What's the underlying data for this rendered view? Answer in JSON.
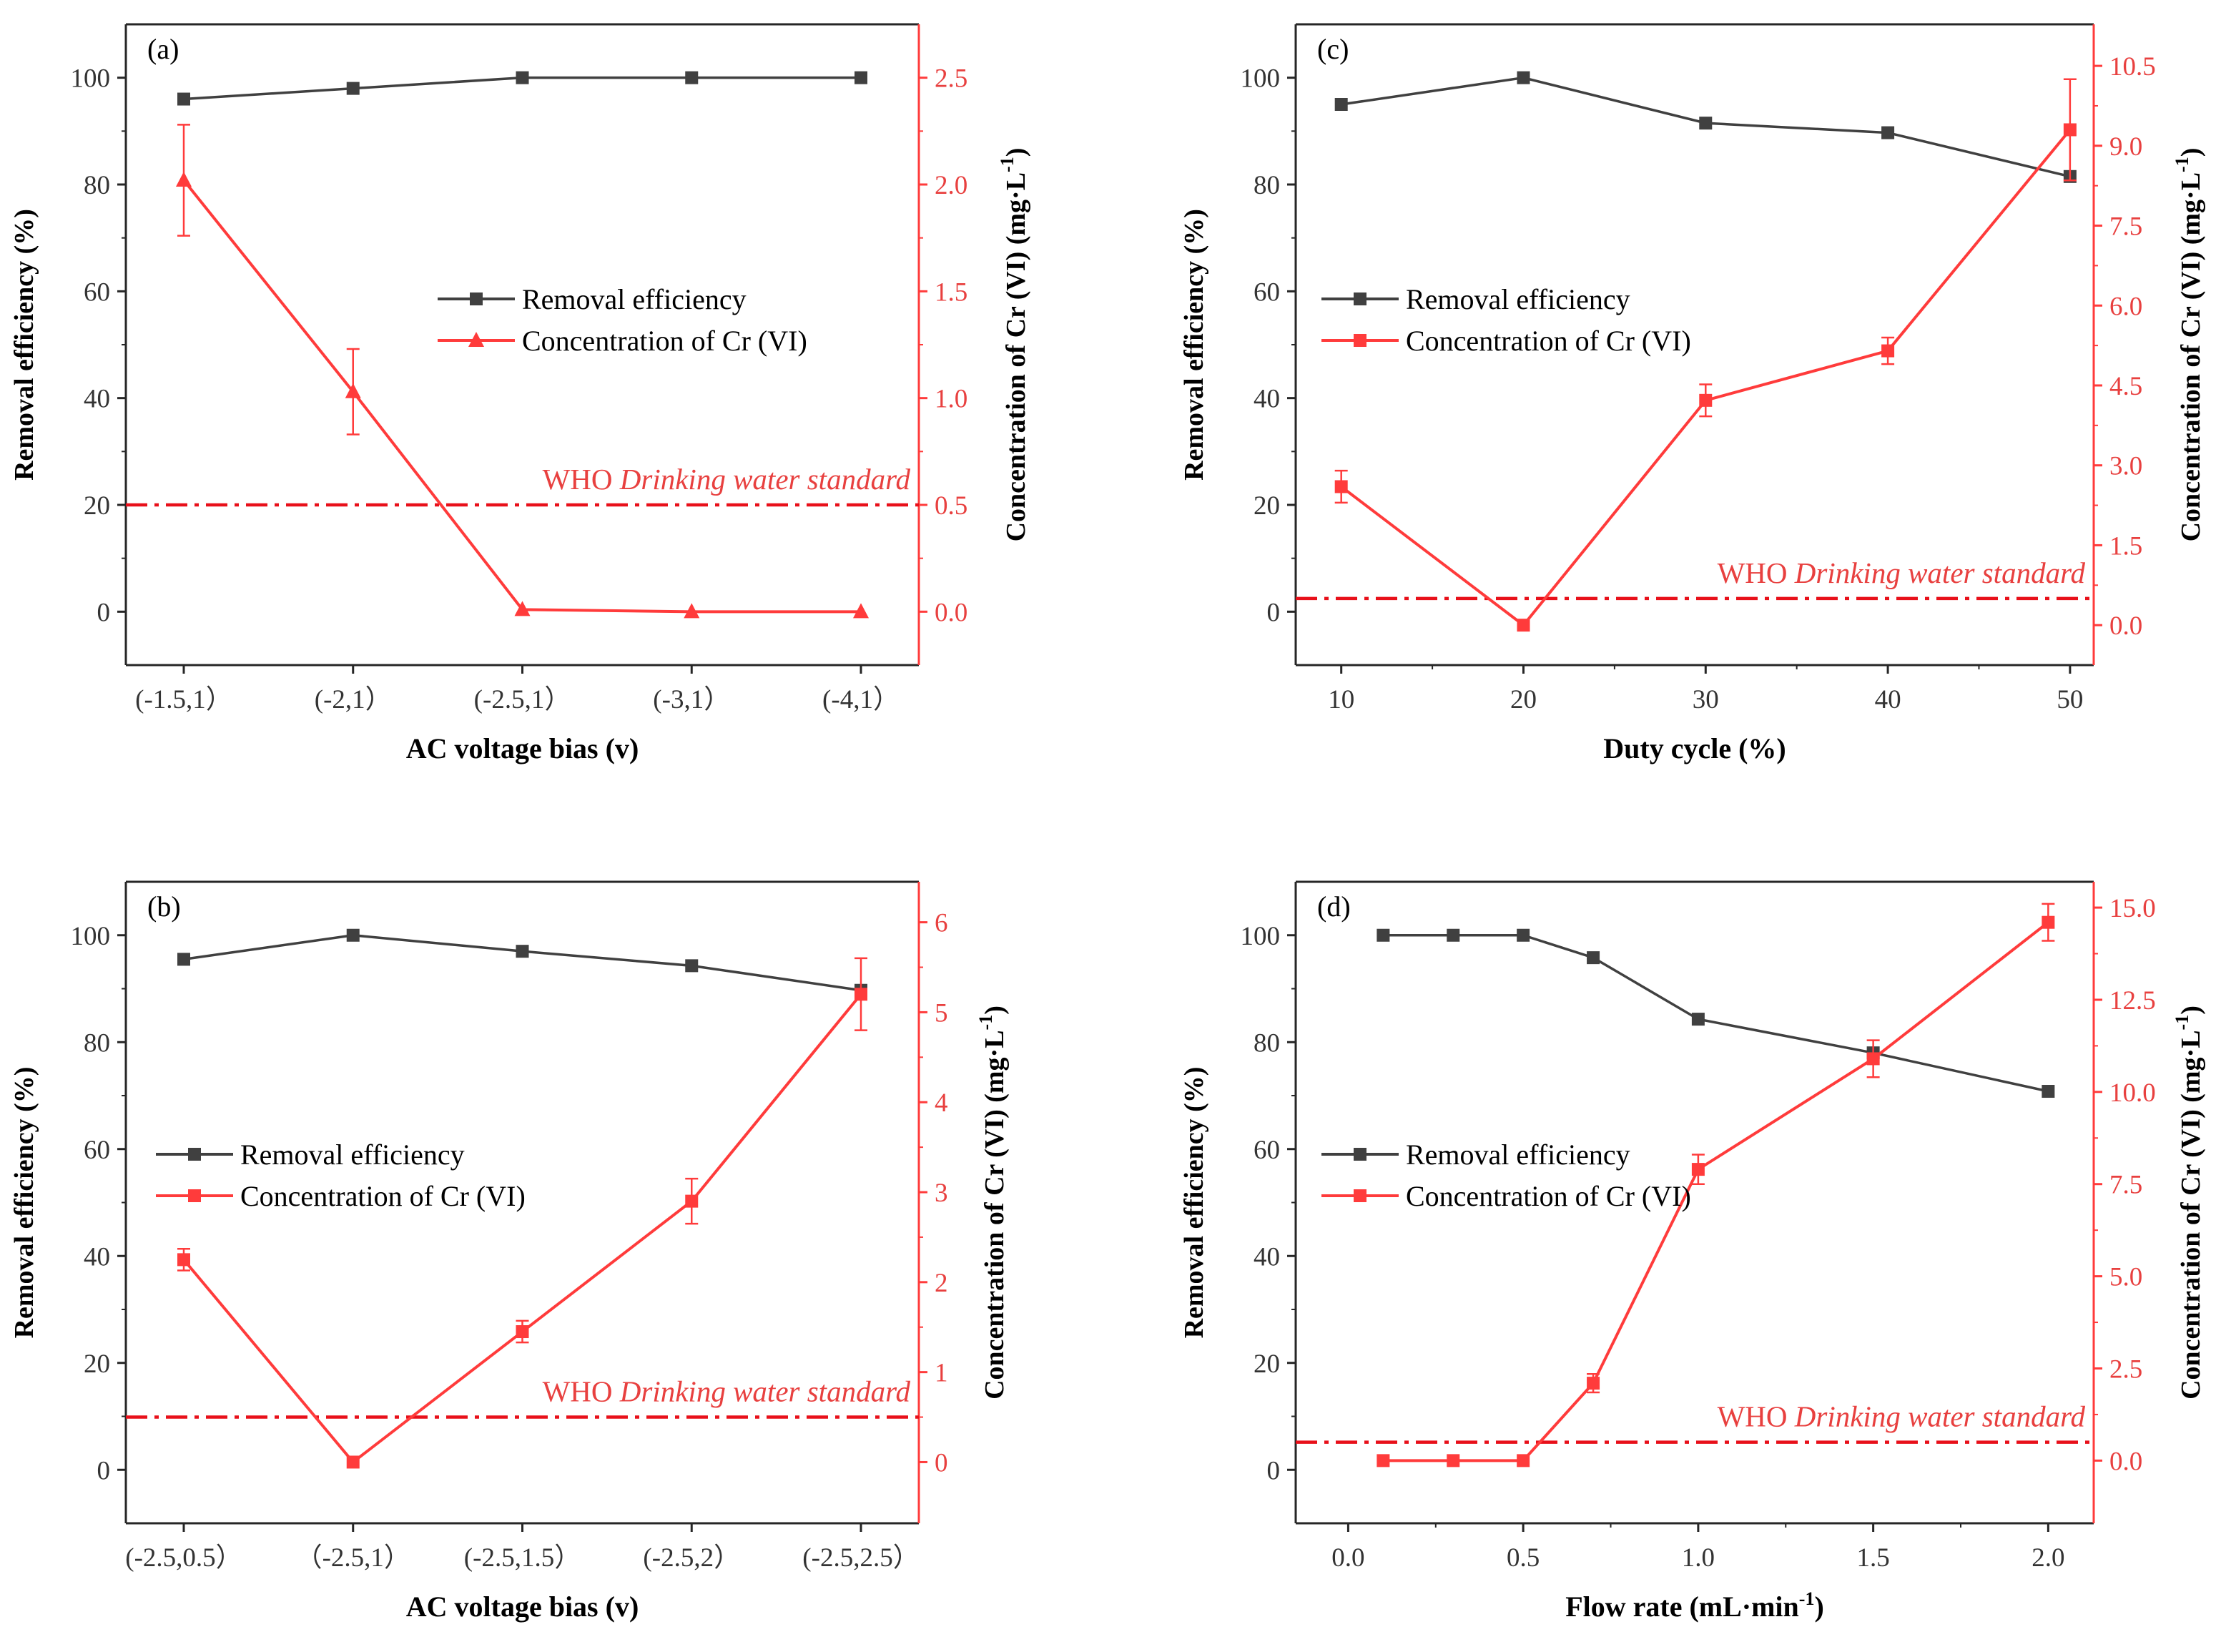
{
  "chart_data": [
    {
      "id": "a",
      "type": "line",
      "panel_label": "(a)",
      "xlabel": "AC voltage bias (v)",
      "ylabel": "Removal efficiency (%)",
      "y2label": "Concentration of Cr (VI) (mg·L",
      "y2label_sup": "-1",
      "y2label_tail": ")",
      "categories": [
        "(-1.5,1）",
        "(-2,1）",
        "(-2.5,1）",
        "(-3,1）",
        "(-4,1）"
      ],
      "ylim": [
        -10,
        110
      ],
      "yticks": [
        0,
        20,
        40,
        60,
        80,
        100
      ],
      "y2lim": [
        -0.25,
        2.75
      ],
      "y2ticks": [
        "0.0",
        "0.5",
        "1.0",
        "1.5",
        "2.0",
        "2.5"
      ],
      "series": [
        {
          "name": "Removal efficiency",
          "axis": "left",
          "marker": "square",
          "color": "#404040",
          "values": [
            96,
            98,
            100,
            100,
            100
          ]
        },
        {
          "name": "Concentration of Cr (VI)",
          "axis": "right",
          "marker": "triangle",
          "color": "#ff3b3b",
          "values": [
            2.02,
            1.03,
            0.01,
            0.0,
            0.0
          ],
          "errors": [
            0.26,
            0.2,
            0.0,
            0.0,
            0.0
          ]
        }
      ],
      "standard": {
        "value": 0.5,
        "label_prefix": "WHO ",
        "label_em": "Drinking water standard"
      },
      "legend_position": "center-right"
    },
    {
      "id": "b",
      "type": "line",
      "panel_label": "(b)",
      "xlabel": "AC voltage bias (v)",
      "ylabel": "Removal efficiency (%)",
      "y2label": "Concentration of Cr (VI) (mg·L",
      "y2label_sup": "-1",
      "y2label_tail": ")",
      "categories": [
        "(-2.5,0.5）",
        "（-2.5,1）",
        "(-2.5,1.5）",
        "(-2.5,2）",
        "(-2.5,2.5）"
      ],
      "ylim": [
        -10,
        110
      ],
      "yticks": [
        0,
        20,
        40,
        60,
        80,
        100
      ],
      "y2lim": [
        -0.68,
        6.45
      ],
      "y2ticks": [
        "0",
        "1",
        "2",
        "3",
        "4",
        "5",
        "6"
      ],
      "series": [
        {
          "name": "Removal efficiency",
          "axis": "left",
          "marker": "square",
          "color": "#404040",
          "values": [
            95.5,
            100,
            97,
            94.3,
            89.7
          ]
        },
        {
          "name": "Concentration of Cr (VI)",
          "axis": "right",
          "marker": "square",
          "color": "#ff3b3b",
          "values": [
            2.25,
            0.0,
            1.45,
            2.9,
            5.2
          ],
          "errors": [
            0.12,
            0.0,
            0.12,
            0.25,
            0.4
          ]
        }
      ],
      "standard": {
        "value": 0.5,
        "label_prefix": "WHO ",
        "label_em": "Drinking water standard"
      },
      "legend_position": "center-left"
    },
    {
      "id": "c",
      "type": "line",
      "panel_label": "(c)",
      "xlabel": "Duty cycle (%)",
      "ylabel": "Removal efficiency (%)",
      "y2label": "Concentration of Cr (VI) (mg·L",
      "y2label_sup": "-1",
      "y2label_tail": ")",
      "x": [
        10,
        20,
        30,
        40,
        50
      ],
      "xlim": [
        7.5,
        51.3
      ],
      "xticks": [
        "10",
        "20",
        "30",
        "40",
        "50"
      ],
      "ylim": [
        -10,
        110
      ],
      "yticks": [
        0,
        20,
        40,
        60,
        80,
        100
      ],
      "y2lim": [
        -0.75,
        11.28
      ],
      "y2ticks": [
        "0.0",
        "1.5",
        "3.0",
        "4.5",
        "6.0",
        "7.5",
        "9.0",
        "10.5"
      ],
      "series": [
        {
          "name": "Removal efficiency",
          "axis": "left",
          "marker": "square",
          "color": "#404040",
          "values": [
            95,
            100,
            91.5,
            89.7,
            81.5
          ]
        },
        {
          "name": "Concentration of Cr (VI)",
          "axis": "right",
          "marker": "square",
          "color": "#ff3b3b",
          "values": [
            2.6,
            0.0,
            4.22,
            5.15,
            9.3
          ],
          "errors": [
            0.3,
            0.0,
            0.3,
            0.25,
            0.95
          ]
        }
      ],
      "standard": {
        "value": 0.5,
        "label_prefix": "WHO ",
        "label_em": "Drinking water standard"
      },
      "legend_position": "center-left"
    },
    {
      "id": "d",
      "type": "line",
      "panel_label": "(d)",
      "xlabel": "Flow rate (mL·min",
      "xlabel_sup": "-1",
      "xlabel_tail": ")",
      "ylabel": "Removal efficiency (%)",
      "y2label": "Concentration of Cr (VI) (mg·L",
      "y2label_sup": "-1",
      "y2label_tail": ")",
      "x": [
        0.1,
        0.3,
        0.5,
        0.7,
        1.0,
        1.5,
        2.0
      ],
      "xlim": [
        -0.15,
        2.13
      ],
      "xticks": [
        "0.0",
        "0.5",
        "1.0",
        "1.5",
        "2.0"
      ],
      "xtick_values": [
        0,
        0.5,
        1.0,
        1.5,
        2.0
      ],
      "ylim": [
        -10,
        110
      ],
      "yticks": [
        0,
        20,
        40,
        60,
        80,
        100
      ],
      "y2lim": [
        -1.7,
        15.7
      ],
      "y2ticks": [
        "0.0",
        "2.5",
        "5.0",
        "7.5",
        "10.0",
        "12.5",
        "15.0"
      ],
      "series": [
        {
          "name": "Removal efficiency",
          "axis": "left",
          "marker": "square",
          "color": "#404040",
          "values": [
            100,
            100,
            100,
            95.8,
            84.3,
            78,
            70.8
          ]
        },
        {
          "name": "Concentration of Cr (VI)",
          "axis": "right",
          "marker": "square",
          "color": "#ff3b3b",
          "values": [
            0.0,
            0.0,
            0.0,
            2.1,
            7.9,
            10.9,
            14.6
          ],
          "errors": [
            0.0,
            0.0,
            0.0,
            0.25,
            0.4,
            0.5,
            0.5
          ]
        }
      ],
      "standard": {
        "value": 0.5,
        "label_prefix": "WHO ",
        "label_em": "Drinking water standard"
      },
      "legend_position": "center-right"
    }
  ]
}
